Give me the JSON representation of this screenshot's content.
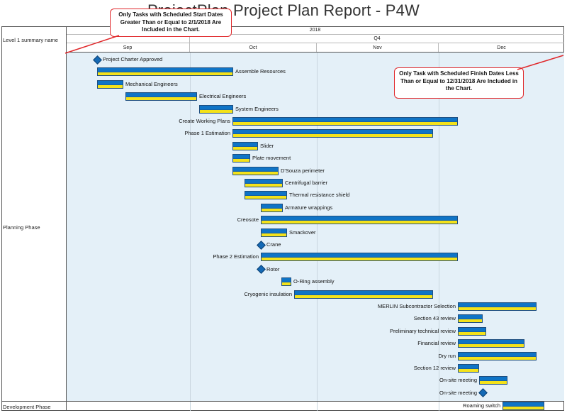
{
  "report": {
    "title": "ProjectPlan Project Plan Report - P4W"
  },
  "header": {
    "summary_label": "Level 1 summary name",
    "year": "2018",
    "quarter": "Q4",
    "months": [
      "Sep",
      "Oct",
      "Nov",
      "Dec"
    ]
  },
  "callouts": {
    "start": "Only Tasks with Scheduled Start Dates Greater Than or Equal to 2/1/2018 Are Included in the Chart.",
    "finish": "Only Task with Scheduled Finish Dates Less Than or Equal to 12/31/2018 Are Included in the Chart."
  },
  "phases": [
    {
      "name": "Planning Phase"
    },
    {
      "name": "Development Phase"
    }
  ],
  "tasks": [
    {
      "name": "Project Charter Approved",
      "type": "milestone"
    },
    {
      "name": "Assemble Resources",
      "type": "bar"
    },
    {
      "name": "Mechanical Engineers",
      "type": "bar"
    },
    {
      "name": "Electrical Engineers",
      "type": "bar"
    },
    {
      "name": "System Engineers",
      "type": "bar"
    },
    {
      "name": "Create Working Plans",
      "type": "bar"
    },
    {
      "name": "Phase 1 Estimation",
      "type": "bar"
    },
    {
      "name": "Slider",
      "type": "bar"
    },
    {
      "name": "Plate movement",
      "type": "bar"
    },
    {
      "name": "D'Souza perimeter",
      "type": "bar"
    },
    {
      "name": "Centrifugal barrier",
      "type": "bar"
    },
    {
      "name": "Thermal resistance shield",
      "type": "bar"
    },
    {
      "name": "Armature wrappings",
      "type": "bar"
    },
    {
      "name": "Creosote",
      "type": "bar"
    },
    {
      "name": "Smackover",
      "type": "bar"
    },
    {
      "name": "Crane",
      "type": "milestone"
    },
    {
      "name": "Phase 2 Estimation",
      "type": "bar"
    },
    {
      "name": "Rotor",
      "type": "milestone"
    },
    {
      "name": "O-Ring assembly",
      "type": "bar"
    },
    {
      "name": "Cryogenic insulation",
      "type": "bar"
    },
    {
      "name": "MERLIN Subcontractor Selection",
      "type": "bar"
    },
    {
      "name": "Section 43 review",
      "type": "bar"
    },
    {
      "name": "Preliminary technical review",
      "type": "bar"
    },
    {
      "name": "Financial review",
      "type": "bar"
    },
    {
      "name": "Dry run",
      "type": "bar"
    },
    {
      "name": "Section 12 review",
      "type": "bar"
    },
    {
      "name": "On-site meeting",
      "type": "bar"
    },
    {
      "name": "On-site meeting",
      "type": "milestone"
    },
    {
      "name": "Roaming switch",
      "type": "bar"
    }
  ],
  "colors": {
    "bar_top": "#0f74c6",
    "bar_bottom": "#f4e21a",
    "callout_border": "#e0282b",
    "chart_bg": "#e4f0f8"
  }
}
